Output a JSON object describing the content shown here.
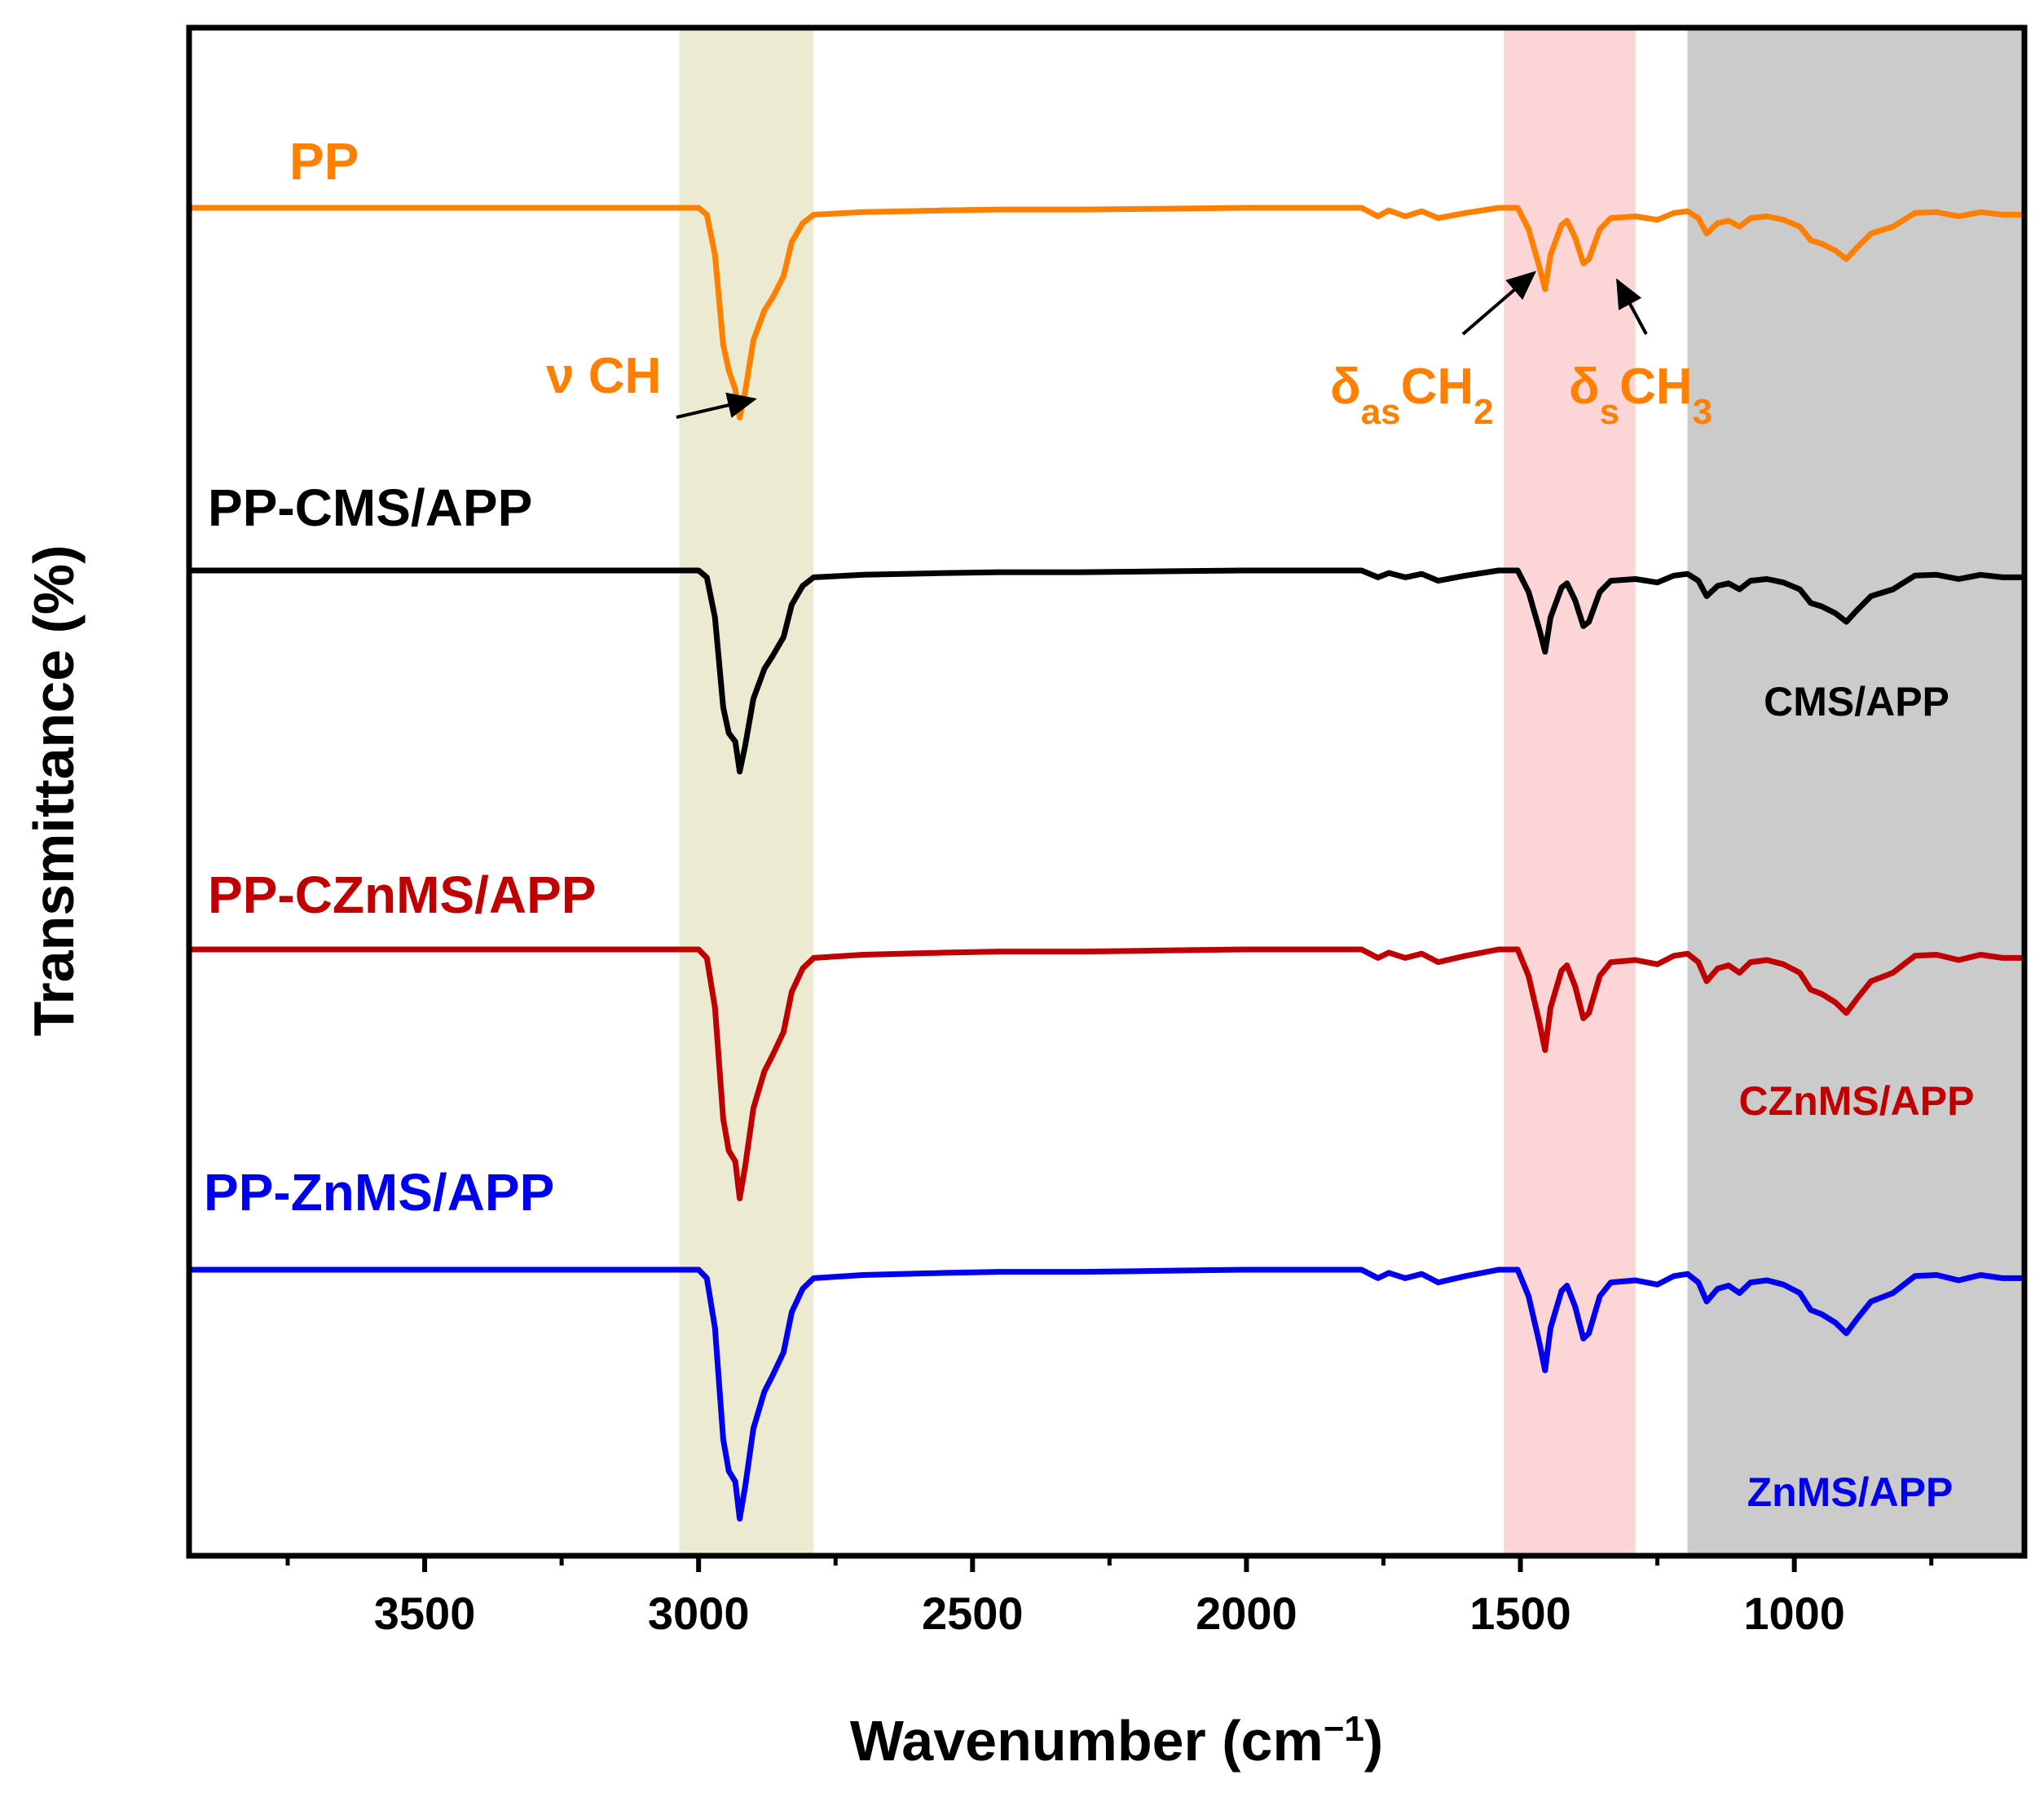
{
  "chart_data": {
    "type": "line",
    "xlabel": "Wavenumber (cm",
    "xlabel_sup": "−1",
    "xlabel_close": ")",
    "ylabel": "Transmittance (%)",
    "xlim": [
      3930,
      580
    ],
    "x_direction": "reversed",
    "xticks_major": [
      3500,
      3000,
      2500,
      2000,
      1500,
      1000
    ],
    "xtick_labels": [
      "3500",
      "3000",
      "2500",
      "2000",
      "1500",
      "1000"
    ],
    "xticks_minor": [
      3750,
      3250,
      2750,
      2250,
      1750,
      1250,
      750
    ],
    "yticks_visible": false,
    "shaded_regions": [
      {
        "name": "ch-stretch-band",
        "from": 3035,
        "to": 2790,
        "color": "#ecebd2"
      },
      {
        "name": "ch-bend-band",
        "from": 1530,
        "to": 1290,
        "color": "#fcd6d6"
      },
      {
        "name": "fr-band",
        "from": 1195,
        "to": 580,
        "color": "#cbcbcb"
      }
    ],
    "series": [
      {
        "name": "PP",
        "color": "#ff8000",
        "band_color": "#d77019",
        "label": "PP",
        "rel_points": [
          [
            3930,
            0
          ],
          [
            3800,
            0
          ],
          [
            3600,
            0
          ],
          [
            3400,
            0
          ],
          [
            3200,
            0
          ],
          [
            3050,
            0
          ],
          [
            3000,
            0
          ],
          [
            2985,
            -8
          ],
          [
            2970,
            -55
          ],
          [
            2955,
            -160
          ],
          [
            2945,
            -190
          ],
          [
            2933,
            -212
          ],
          [
            2925,
            -245
          ],
          [
            2915,
            -215
          ],
          [
            2900,
            -155
          ],
          [
            2880,
            -120
          ],
          [
            2865,
            -105
          ],
          [
            2845,
            -80
          ],
          [
            2830,
            -40
          ],
          [
            2810,
            -18
          ],
          [
            2790,
            -8
          ],
          [
            2700,
            -5
          ],
          [
            2550,
            -3
          ],
          [
            2450,
            -2
          ],
          [
            2300,
            -2
          ],
          [
            2150,
            -1
          ],
          [
            2000,
            0
          ],
          [
            1850,
            0
          ],
          [
            1790,
            0
          ],
          [
            1760,
            -10
          ],
          [
            1740,
            -3
          ],
          [
            1710,
            -10
          ],
          [
            1680,
            -4
          ],
          [
            1650,
            -12
          ],
          [
            1600,
            -6
          ],
          [
            1540,
            0
          ],
          [
            1505,
            0
          ],
          [
            1485,
            -25
          ],
          [
            1465,
            -70
          ],
          [
            1455,
            -95
          ],
          [
            1445,
            -55
          ],
          [
            1425,
            -20
          ],
          [
            1415,
            -15
          ],
          [
            1400,
            -35
          ],
          [
            1385,
            -65
          ],
          [
            1375,
            -60
          ],
          [
            1355,
            -25
          ],
          [
            1335,
            -12
          ],
          [
            1290,
            -10
          ],
          [
            1250,
            -14
          ],
          [
            1220,
            -6
          ],
          [
            1195,
            -4
          ],
          [
            1175,
            -12
          ],
          [
            1160,
            -30
          ],
          [
            1140,
            -18
          ],
          [
            1120,
            -15
          ],
          [
            1100,
            -22
          ],
          [
            1080,
            -12
          ],
          [
            1050,
            -10
          ],
          [
            1020,
            -14
          ],
          [
            990,
            -22
          ],
          [
            970,
            -38
          ],
          [
            950,
            -42
          ],
          [
            925,
            -50
          ],
          [
            905,
            -60
          ],
          [
            885,
            -46
          ],
          [
            860,
            -30
          ],
          [
            820,
            -22
          ],
          [
            780,
            -6
          ],
          [
            740,
            -5
          ],
          [
            700,
            -10
          ],
          [
            660,
            -5
          ],
          [
            620,
            -8
          ],
          [
            580,
            -8
          ]
        ]
      },
      {
        "name": "PP-CMS/APP",
        "color": "#000000",
        "band_color": "#000000",
        "label": "PP-CMS/APP",
        "rel_points": [
          [
            3930,
            0
          ],
          [
            3800,
            0
          ],
          [
            3600,
            0
          ],
          [
            3400,
            0
          ],
          [
            3200,
            0
          ],
          [
            3050,
            0
          ],
          [
            3000,
            0
          ],
          [
            2985,
            -8
          ],
          [
            2970,
            -55
          ],
          [
            2955,
            -160
          ],
          [
            2945,
            -190
          ],
          [
            2933,
            -200
          ],
          [
            2925,
            -235
          ],
          [
            2915,
            -205
          ],
          [
            2900,
            -150
          ],
          [
            2880,
            -115
          ],
          [
            2865,
            -100
          ],
          [
            2845,
            -78
          ],
          [
            2830,
            -40
          ],
          [
            2810,
            -18
          ],
          [
            2790,
            -8
          ],
          [
            2700,
            -5
          ],
          [
            2550,
            -3
          ],
          [
            2450,
            -2
          ],
          [
            2300,
            -2
          ],
          [
            2150,
            -1
          ],
          [
            2000,
            0
          ],
          [
            1850,
            0
          ],
          [
            1790,
            0
          ],
          [
            1760,
            -8
          ],
          [
            1740,
            -3
          ],
          [
            1710,
            -8
          ],
          [
            1680,
            -4
          ],
          [
            1650,
            -12
          ],
          [
            1600,
            -6
          ],
          [
            1540,
            0
          ],
          [
            1505,
            0
          ],
          [
            1485,
            -25
          ],
          [
            1465,
            -70
          ],
          [
            1455,
            -95
          ],
          [
            1445,
            -55
          ],
          [
            1425,
            -20
          ],
          [
            1415,
            -15
          ],
          [
            1400,
            -35
          ],
          [
            1385,
            -65
          ],
          [
            1375,
            -60
          ],
          [
            1355,
            -25
          ],
          [
            1335,
            -12
          ],
          [
            1290,
            -10
          ],
          [
            1250,
            -14
          ],
          [
            1220,
            -6
          ],
          [
            1195,
            -4
          ],
          [
            1175,
            -12
          ],
          [
            1160,
            -30
          ],
          [
            1140,
            -18
          ],
          [
            1120,
            -15
          ],
          [
            1100,
            -22
          ],
          [
            1080,
            -12
          ],
          [
            1050,
            -10
          ],
          [
            1020,
            -14
          ],
          [
            990,
            -22
          ],
          [
            970,
            -38
          ],
          [
            950,
            -42
          ],
          [
            925,
            -50
          ],
          [
            905,
            -60
          ],
          [
            885,
            -46
          ],
          [
            860,
            -30
          ],
          [
            820,
            -22
          ],
          [
            780,
            -6
          ],
          [
            740,
            -5
          ],
          [
            700,
            -10
          ],
          [
            660,
            -5
          ],
          [
            620,
            -8
          ],
          [
            580,
            -8
          ]
        ]
      },
      {
        "name": "PP-CZnMS/APP",
        "color": "#c00000",
        "band_color": "#b43418",
        "label": "PP-CZnMS/APP",
        "rel_points": [
          [
            3930,
            0
          ],
          [
            3800,
            0
          ],
          [
            3600,
            0
          ],
          [
            3400,
            0
          ],
          [
            3200,
            0
          ],
          [
            3050,
            0
          ],
          [
            3000,
            0
          ],
          [
            2985,
            -8
          ],
          [
            2970,
            -55
          ],
          [
            2955,
            -160
          ],
          [
            2945,
            -190
          ],
          [
            2933,
            -200
          ],
          [
            2925,
            -235
          ],
          [
            2915,
            -205
          ],
          [
            2900,
            -150
          ],
          [
            2880,
            -115
          ],
          [
            2865,
            -100
          ],
          [
            2845,
            -78
          ],
          [
            2830,
            -40
          ],
          [
            2810,
            -18
          ],
          [
            2790,
            -8
          ],
          [
            2700,
            -5
          ],
          [
            2550,
            -3
          ],
          [
            2450,
            -2
          ],
          [
            2300,
            -2
          ],
          [
            2150,
            -1
          ],
          [
            2000,
            0
          ],
          [
            1850,
            0
          ],
          [
            1790,
            0
          ],
          [
            1760,
            -8
          ],
          [
            1740,
            -3
          ],
          [
            1710,
            -8
          ],
          [
            1680,
            -4
          ],
          [
            1650,
            -12
          ],
          [
            1600,
            -6
          ],
          [
            1540,
            0
          ],
          [
            1505,
            0
          ],
          [
            1485,
            -25
          ],
          [
            1465,
            -70
          ],
          [
            1455,
            -95
          ],
          [
            1445,
            -55
          ],
          [
            1425,
            -20
          ],
          [
            1415,
            -15
          ],
          [
            1400,
            -35
          ],
          [
            1385,
            -65
          ],
          [
            1375,
            -60
          ],
          [
            1355,
            -25
          ],
          [
            1335,
            -12
          ],
          [
            1290,
            -10
          ],
          [
            1250,
            -14
          ],
          [
            1220,
            -6
          ],
          [
            1195,
            -4
          ],
          [
            1175,
            -12
          ],
          [
            1160,
            -30
          ],
          [
            1140,
            -18
          ],
          [
            1120,
            -15
          ],
          [
            1100,
            -22
          ],
          [
            1080,
            -12
          ],
          [
            1050,
            -10
          ],
          [
            1020,
            -14
          ],
          [
            990,
            -22
          ],
          [
            970,
            -38
          ],
          [
            950,
            -42
          ],
          [
            925,
            -50
          ],
          [
            905,
            -60
          ],
          [
            885,
            -46
          ],
          [
            860,
            -30
          ],
          [
            820,
            -22
          ],
          [
            780,
            -6
          ],
          [
            740,
            -5
          ],
          [
            700,
            -10
          ],
          [
            660,
            -5
          ],
          [
            620,
            -8
          ],
          [
            580,
            -8
          ]
        ]
      },
      {
        "name": "PP-ZnMS/APP",
        "color": "#0000ee",
        "band_color": "#1a1ad0",
        "label": "PP-ZnMS/APP",
        "rel_points": [
          [
            3930,
            0
          ],
          [
            3800,
            0
          ],
          [
            3600,
            0
          ],
          [
            3400,
            0
          ],
          [
            3200,
            0
          ],
          [
            3050,
            0
          ],
          [
            3000,
            0
          ],
          [
            2985,
            -8
          ],
          [
            2970,
            -55
          ],
          [
            2955,
            -160
          ],
          [
            2945,
            -190
          ],
          [
            2933,
            -200
          ],
          [
            2925,
            -235
          ],
          [
            2915,
            -205
          ],
          [
            2900,
            -150
          ],
          [
            2880,
            -115
          ],
          [
            2865,
            -100
          ],
          [
            2845,
            -78
          ],
          [
            2830,
            -40
          ],
          [
            2810,
            -18
          ],
          [
            2790,
            -8
          ],
          [
            2700,
            -5
          ],
          [
            2550,
            -3
          ],
          [
            2450,
            -2
          ],
          [
            2300,
            -2
          ],
          [
            2150,
            -1
          ],
          [
            2000,
            0
          ],
          [
            1850,
            0
          ],
          [
            1790,
            0
          ],
          [
            1760,
            -8
          ],
          [
            1740,
            -3
          ],
          [
            1710,
            -8
          ],
          [
            1680,
            -4
          ],
          [
            1650,
            -12
          ],
          [
            1600,
            -6
          ],
          [
            1540,
            0
          ],
          [
            1505,
            0
          ],
          [
            1485,
            -25
          ],
          [
            1465,
            -70
          ],
          [
            1455,
            -95
          ],
          [
            1445,
            -55
          ],
          [
            1425,
            -20
          ],
          [
            1415,
            -15
          ],
          [
            1400,
            -35
          ],
          [
            1385,
            -65
          ],
          [
            1375,
            -60
          ],
          [
            1355,
            -25
          ],
          [
            1335,
            -12
          ],
          [
            1290,
            -10
          ],
          [
            1250,
            -14
          ],
          [
            1220,
            -6
          ],
          [
            1195,
            -4
          ],
          [
            1175,
            -12
          ],
          [
            1160,
            -30
          ],
          [
            1140,
            -18
          ],
          [
            1120,
            -15
          ],
          [
            1100,
            -22
          ],
          [
            1080,
            -12
          ],
          [
            1050,
            -10
          ],
          [
            1020,
            -14
          ],
          [
            990,
            -22
          ],
          [
            970,
            -38
          ],
          [
            950,
            -42
          ],
          [
            925,
            -50
          ],
          [
            905,
            -60
          ],
          [
            885,
            -46
          ],
          [
            860,
            -30
          ],
          [
            820,
            -22
          ],
          [
            780,
            -6
          ],
          [
            740,
            -5
          ],
          [
            700,
            -10
          ],
          [
            660,
            -5
          ],
          [
            620,
            -8
          ],
          [
            580,
            -8
          ]
        ]
      }
    ],
    "annotations": [
      {
        "name": "nu-ch",
        "prefix": "ν",
        "base": " CH",
        "sub": "",
        "base2": "",
        "sub2": "",
        "color": "#ff8000"
      },
      {
        "name": "delta-as-ch2",
        "prefix": "δ",
        "base": "",
        "sub": "as",
        "base2": "CH",
        "sub2": "2",
        "color": "#ff8000"
      },
      {
        "name": "delta-s-ch3",
        "prefix": "δ",
        "base": "",
        "sub": "s",
        "base2": "CH",
        "sub2": "3",
        "color": "#ff8000"
      }
    ],
    "band_labels": [
      {
        "name": "cms-app",
        "text": "CMS/APP",
        "color": "#000000"
      },
      {
        "name": "czn-ms-app",
        "text": "CZnMS/APP",
        "color": "#c00000"
      },
      {
        "name": "znms-app",
        "text": "ZnMS/APP",
        "color": "#0000ee"
      }
    ]
  }
}
